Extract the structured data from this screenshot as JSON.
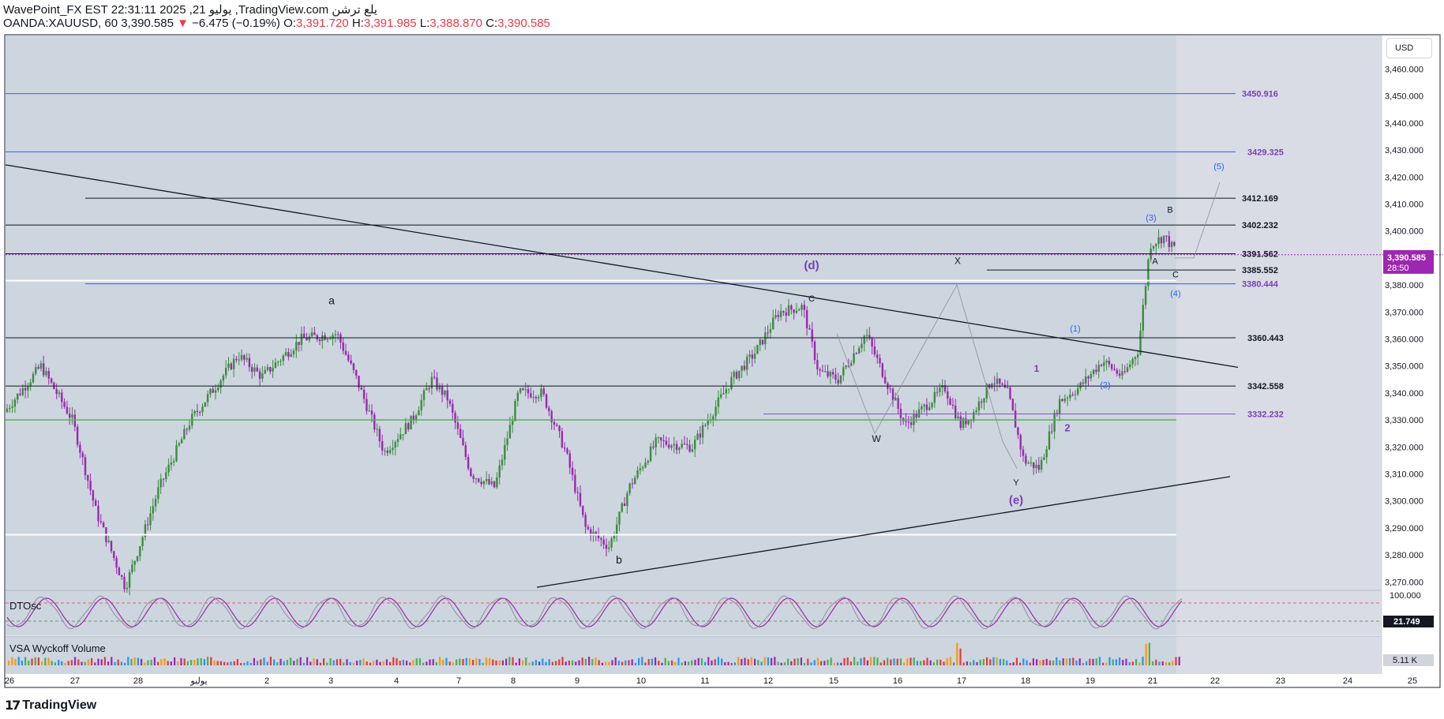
{
  "header": {
    "line1": "WavePoint_FX EST 22:31:11 2025 ,21 يوليو ,TradingView.com يلع ترشن",
    "symbol": "OANDA:XAUUSD, 60",
    "last": "3,390.585",
    "change_arrow": "▼",
    "change": "−6.475 (−0.19%)",
    "o_label": "O:",
    "o_value": "3,391.720",
    "h_label": "H:",
    "h_value": "3,391.985",
    "l_label": "L:",
    "l_value": "3,388.870",
    "c_label": "C:",
    "c_value": "3,390.585"
  },
  "currency_button": "USD",
  "branding": {
    "logo_mark": "17",
    "name": "TradingView"
  },
  "colors": {
    "bg_main": "#cdd5df",
    "bg_right": "#d9dce5",
    "up": "#3b8d3b",
    "down": "#9c27b0",
    "blue_line": "#2962ff",
    "purple_text": "#7b3fb6",
    "wave_blue": "#2962ff",
    "price_tag": "#9c27b0",
    "green_line": "#4caf50"
  },
  "chart_data": {
    "type": "candlestick",
    "price_axis_ticks": [
      "3,460.000",
      "3,450.000",
      "3,440.000",
      "3,430.000",
      "3,420.000",
      "3,410.000",
      "3,400.000",
      "3,390.000",
      "3,380.000",
      "3,370.000",
      "3,360.000",
      "3,350.000",
      "3,340.000",
      "3,330.000",
      "3,320.000",
      "3,310.000",
      "3,300.000",
      "3,290.000",
      "3,280.000",
      "3,270.000"
    ],
    "price_axis_values": [
      3460,
      3450,
      3440,
      3430,
      3420,
      3410,
      3400,
      3390,
      3380,
      3370,
      3360,
      3350,
      3340,
      3330,
      3320,
      3310,
      3300,
      3290,
      3280,
      3270
    ],
    "ylim": [
      3268,
      3474
    ],
    "time_axis_labels": [
      "26",
      "27",
      "28",
      "يوليو",
      "2",
      "3",
      "4",
      "7",
      "8",
      "9",
      "10",
      "11",
      "12",
      "15",
      "16",
      "17",
      "18",
      "19",
      "21",
      "22",
      "23",
      "24",
      "25"
    ],
    "current_price": "3,390.585",
    "countdown": "28:50",
    "horizontal_levels": [
      {
        "value": 3450.916,
        "label": "3450.916",
        "style": "blue"
      },
      {
        "value": 3429.325,
        "label": "3429.325",
        "style": "blue"
      },
      {
        "value": 3412.169,
        "label": "3412.169",
        "style": "black"
      },
      {
        "value": 3402.232,
        "label": "3402.232",
        "style": "black"
      },
      {
        "value": 3391.562,
        "label": "3391.562",
        "style": "black"
      },
      {
        "value": 3385.552,
        "label": "3385.552",
        "style": "black"
      },
      {
        "value": 3380.444,
        "label": "3380.444",
        "style": "blue"
      },
      {
        "value": 3360.443,
        "label": "3360.443",
        "style": "black"
      },
      {
        "value": 3342.558,
        "label": "3342.558",
        "style": "black"
      },
      {
        "value": 3332.232,
        "label": "3332.232",
        "style": "purple"
      }
    ],
    "wave_labels": [
      {
        "text": "a",
        "price": 3374
      },
      {
        "text": "b",
        "price": 3278
      },
      {
        "text": "(d)",
        "price": 3387
      },
      {
        "text": "C",
        "price": 3375
      },
      {
        "text": "W",
        "price": 3323
      },
      {
        "text": "X",
        "price": 3389
      },
      {
        "text": "Y",
        "price": 3307
      },
      {
        "text": "(e)",
        "price": 3300
      },
      {
        "text": "1",
        "price": 3349
      },
      {
        "text": "2",
        "price": 3327
      },
      {
        "text": "(1)",
        "price": 3364
      },
      {
        "text": "(2)",
        "price": 3343
      },
      {
        "text": "(3)",
        "price": 3405
      },
      {
        "text": "(4)",
        "price": 3377
      },
      {
        "text": "(5)",
        "price": 3424
      },
      {
        "text": "A",
        "price": 3389
      },
      {
        "text": "B",
        "price": 3408
      },
      {
        "text": "C",
        "price": 3384
      }
    ],
    "oscillator": {
      "name": "DTOsc",
      "axis_label": "100.000",
      "value": "21.749"
    },
    "volume": {
      "name": "VSA Wyckoff Volume",
      "value": "5.11 K"
    }
  }
}
